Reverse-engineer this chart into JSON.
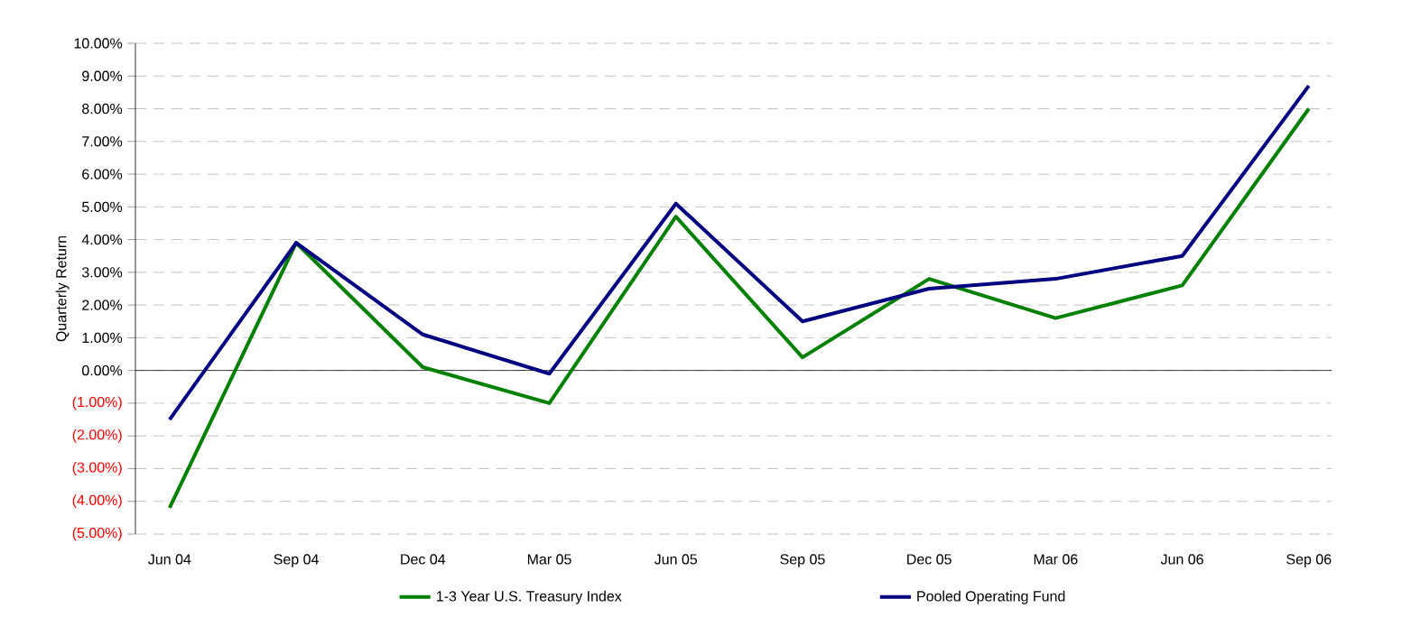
{
  "chart_data": {
    "type": "line",
    "ylabel": "Quarterly Return",
    "categories": [
      "Jun 04",
      "Sep 04",
      "Dec 04",
      "Mar 05",
      "Jun 05",
      "Sep 05",
      "Dec 05",
      "Mar 06",
      "Jun 06",
      "Sep 06"
    ],
    "series": [
      {
        "name": "1-3 Year U.S. Treasury Index",
        "color": "#008000",
        "values": [
          -4.2,
          3.9,
          0.1,
          -1.0,
          4.7,
          0.4,
          2.8,
          1.6,
          2.6,
          8.0
        ]
      },
      {
        "name": "Pooled Operating Fund",
        "color": "#000080",
        "values": [
          -1.5,
          3.9,
          1.1,
          -0.1,
          5.1,
          1.5,
          2.5,
          2.8,
          3.5,
          8.7
        ]
      }
    ],
    "ylim": [
      -5,
      10
    ],
    "yticks": [
      {
        "value": -5,
        "label": "(5.00%)"
      },
      {
        "value": -4,
        "label": "(4.00%)"
      },
      {
        "value": -3,
        "label": "(3.00%)"
      },
      {
        "value": -2,
        "label": "(2.00%)"
      },
      {
        "value": -1,
        "label": "(1.00%)"
      },
      {
        "value": 0,
        "label": "0.00%"
      },
      {
        "value": 1,
        "label": "1.00%"
      },
      {
        "value": 2,
        "label": "2.00%"
      },
      {
        "value": 3,
        "label": "3.00%"
      },
      {
        "value": 4,
        "label": "4.00%"
      },
      {
        "value": 5,
        "label": "5.00%"
      },
      {
        "value": 6,
        "label": "6.00%"
      },
      {
        "value": 7,
        "label": "7.00%"
      },
      {
        "value": 8,
        "label": "8.00%"
      },
      {
        "value": 9,
        "label": "9.00%"
      },
      {
        "value": 10,
        "label": "10.00%"
      }
    ],
    "grid": "y",
    "legend": "bottom",
    "marker": "none",
    "line_style": "solid"
  }
}
